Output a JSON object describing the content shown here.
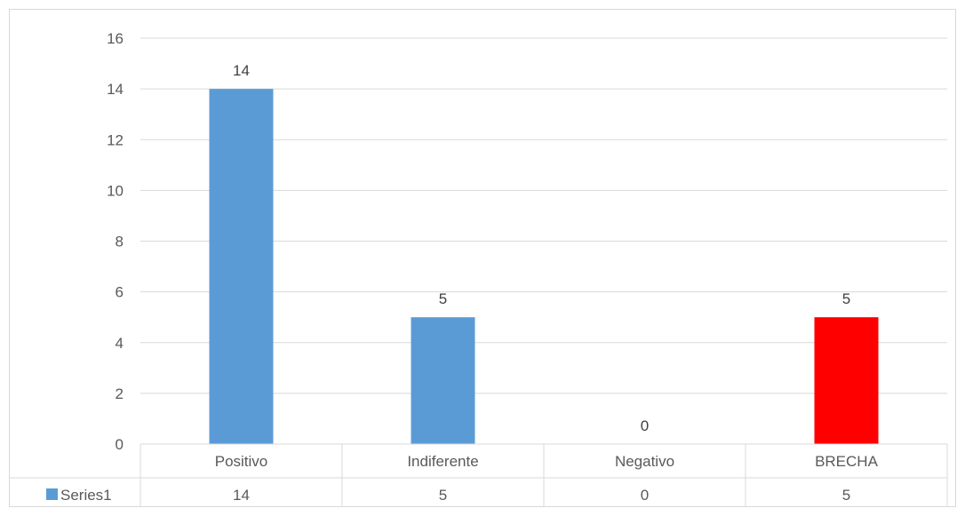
{
  "chart_data": {
    "type": "bar",
    "title": "",
    "xlabel": "",
    "ylabel": "",
    "categories": [
      "Positivo",
      "Indiferente",
      "Negativo",
      "BRECHA"
    ],
    "series": [
      {
        "name": "Series1",
        "values": [
          14,
          5,
          0,
          5
        ],
        "color": "#5b9bd5",
        "point_colors": [
          "#5b9bd5",
          "#5b9bd5",
          "#5b9bd5",
          "#ff0000"
        ]
      }
    ],
    "ylim": [
      0,
      16
    ],
    "y_ticks": [
      0,
      2,
      4,
      6,
      8,
      10,
      12,
      14,
      16
    ],
    "grid": true,
    "data_labels": true,
    "data_table": true,
    "legend": "data-table"
  }
}
